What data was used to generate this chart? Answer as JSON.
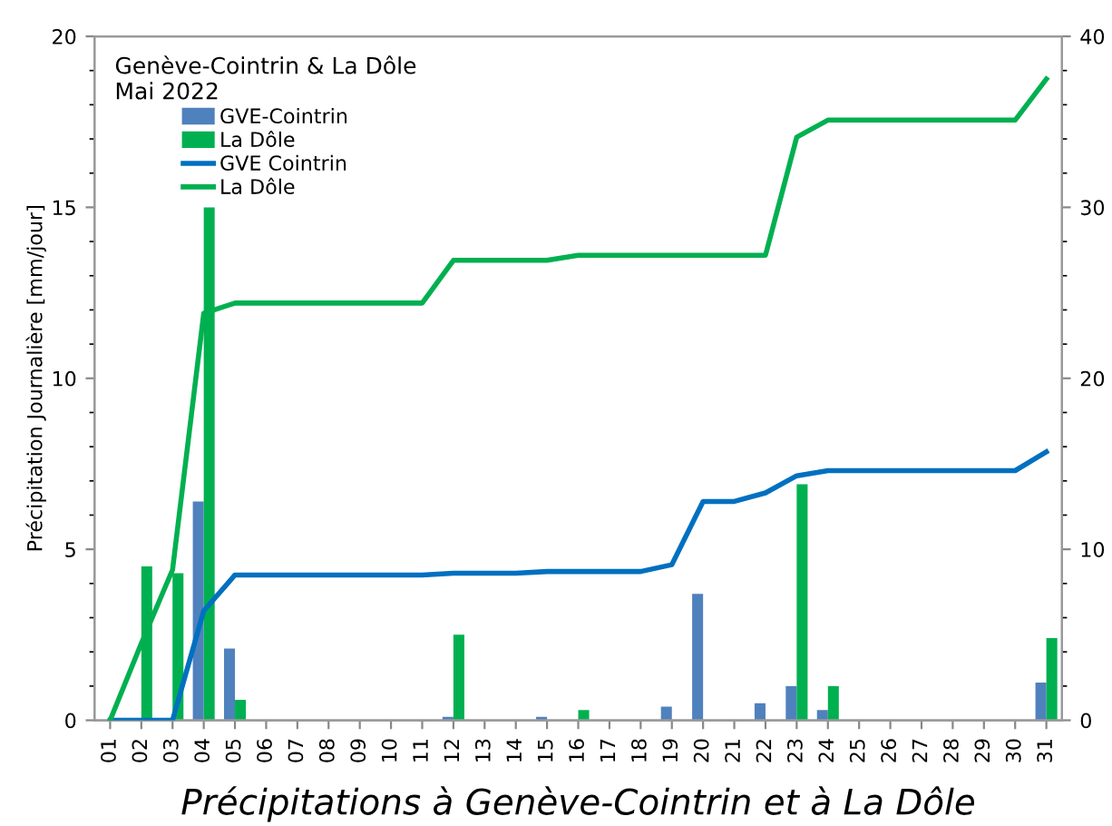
{
  "chart_data": {
    "type": "bar",
    "title": "Précipitations à Genève-Cointrin et à La Dôle",
    "ylabel": "Précipitation Journalière [mm/jour]",
    "legend_title": "Genève-Cointrin & La Dôle\nMai 2022",
    "categories": [
      "01",
      "02",
      "03",
      "04",
      "05",
      "06",
      "07",
      "08",
      "09",
      "10",
      "11",
      "12",
      "13",
      "14",
      "15",
      "16",
      "17",
      "18",
      "19",
      "20",
      "21",
      "22",
      "23",
      "24",
      "25",
      "26",
      "27",
      "28",
      "29",
      "30",
      "31"
    ],
    "series": [
      {
        "name": "GVE-Cointrin",
        "color": "#4f81bd",
        "values": [
          0,
          0,
          0,
          6.4,
          2.1,
          0,
          0,
          0,
          0,
          0,
          0,
          0.1,
          0,
          0,
          0.1,
          0,
          0,
          0,
          0.4,
          3.7,
          0,
          0.5,
          1.0,
          0.3,
          0,
          0,
          0,
          0,
          0,
          0,
          1.1
        ]
      },
      {
        "name": "La Dôle",
        "color": "#00b050",
        "values": [
          0,
          4.5,
          4.3,
          15.0,
          0.6,
          0,
          0,
          0,
          0,
          0,
          0,
          2.5,
          0,
          0,
          0,
          0.3,
          0,
          0,
          0,
          0,
          0,
          0,
          6.9,
          1.0,
          0,
          0,
          0,
          0,
          0,
          0,
          2.4
        ]
      },
      {
        "name": "GVE Cointrin",
        "type": "line",
        "axis": "y2",
        "color": "#0070c0",
        "values": [
          0,
          0,
          0,
          6.4,
          8.5,
          8.5,
          8.5,
          8.5,
          8.5,
          8.5,
          8.5,
          8.6,
          8.6,
          8.6,
          8.7,
          8.7,
          8.7,
          8.7,
          9.1,
          12.8,
          12.8,
          13.3,
          14.3,
          14.6,
          14.6,
          14.6,
          14.6,
          14.6,
          14.6,
          14.6,
          15.7
        ]
      },
      {
        "name": "La Dôle",
        "type": "line",
        "axis": "y2",
        "color": "#00b050",
        "values": [
          0,
          4.5,
          8.8,
          23.8,
          24.4,
          24.4,
          24.4,
          24.4,
          24.4,
          24.4,
          24.4,
          26.9,
          26.9,
          26.9,
          26.9,
          27.2,
          27.2,
          27.2,
          27.2,
          27.2,
          27.2,
          27.2,
          34.1,
          35.1,
          35.1,
          35.1,
          35.1,
          35.1,
          35.1,
          35.1,
          37.5
        ]
      }
    ],
    "ylim": [
      0,
      20
    ],
    "yticks": [
      0,
      5,
      10,
      15,
      20
    ],
    "y2lim": [
      0,
      40
    ],
    "y2ticks": [
      0,
      10,
      20,
      30,
      40
    ],
    "grid": false,
    "legend": "top left",
    "marker": "none",
    "line_style": "solid"
  }
}
